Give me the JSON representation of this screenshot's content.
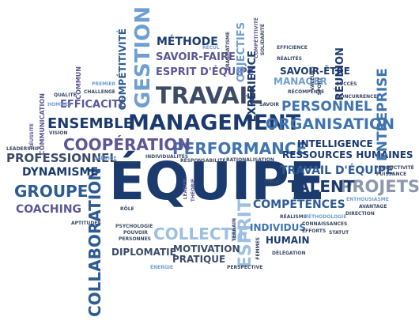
{
  "palette": {
    "navy": "#1b3a6e",
    "blue": "#2d5b93",
    "mid": "#3f74b0",
    "sky": "#6f9fd0",
    "light": "#9dbfe2",
    "slate": "#3c4b66",
    "purple": "#5c5896",
    "gray": "#8c98ad"
  },
  "words": {
    "equipe": "ÉQUIPE",
    "management": "MANAGEMENT",
    "travail": "TRAVAIL",
    "gestion": "GESTION",
    "collaboration": "COLLABORATION",
    "organisation": "ORGANISATION",
    "performance": "PERFORMANCE",
    "cooperation": "COOPÉRATION",
    "ensemble": "ENSEMBLE",
    "groupe": "GROUPE",
    "projets": "PROJETS",
    "talent": "TALENT",
    "collectif": "COLLECTIF",
    "esprit": "ESPRIT",
    "personnel": "PERSONNEL",
    "ressources_humaines": "RESSOURCES HUMAINES",
    "intelligence": "INTELLIGENCE",
    "travail_d_equipe": "TRAVAIL D'ÉQUIPE",
    "competences": "COMPÉTENCES",
    "individus": "INDIVIDUS",
    "humain": "HUMAIN",
    "dynamisme": "DYNAMISME",
    "professionnel": "PROFESSIONNEL",
    "coaching": "COACHING",
    "efficacite": "EFFICACITÉ",
    "diplomatie": "DIPLOMATIE",
    "motivation": "MOTIVATION",
    "pratique": "PRATIQUE",
    "methode": "MÉTHODE",
    "savoir_faire": "SAVOIR-FAIRE",
    "esprit_d_equipe": "ESPRIT D'ÉQUIPE",
    "savoir_etre": "SAVOIR-ÊTRE",
    "manager": "MANAGER",
    "experience": "EXPÉRIENCE",
    "objectifs": "OBJECTIFS",
    "reunion": "RÉUNION",
    "entreprise": "ENTREPRISE",
    "competitivite": "COMPÉTITIVITÉ",
    "competitivite_small": "COMPÉTITIVITÉ",
    "communication": "COMMUNICATION",
    "leadership": "LEADERSHIP",
    "reussite": "RÉUSSITE",
    "vision": "VISION",
    "hommes": "HOMMES",
    "qualite": "QUALITÉ",
    "challenge": "CHALLENGE",
    "premier": "PREMIER",
    "commun": "COMMUN",
    "service": "SERVICE",
    "individualites": "INDIVIDUALITÉS",
    "responsabilite": "RESPONSABILITÉ",
    "rationalisation": "RATIONALISATION",
    "leader": "LEADER",
    "theorie": "THÉORIE",
    "role": "RÔLE",
    "aptitudes": "APTITUDES",
    "psychologie": "PSYCHOLOGIE",
    "pouvoir": "POUVOIR",
    "personnes": "PERSONNES",
    "energie": "ÉNERGIE",
    "terrain": "TERRAIN",
    "femmes": "FEMMES",
    "perspective": "PERSPECTIVE",
    "delegation": "DÉLÉGATION",
    "efforts": "EFFORTS",
    "statut": "STATUT",
    "realisme": "RÉALISME",
    "methodologie": "MÉTHODOLOGIE",
    "connaissances": "CONNAISSANCES",
    "avantage": "AVANTAGE",
    "direction": "DIRECTION",
    "enthousiasme": "ENTHOUSIASME",
    "productivite": "PRODUCTIVITÉ",
    "puissance": "PUISSANCE",
    "cible": "CIBLE",
    "recul": "RECUL",
    "pragmatisme": "PRAGMATISME",
    "solidarite": "SOLIDARITÉ",
    "efficience": "EFFICIENCE",
    "realites": "RÉALITÉS",
    "recompense": "RÉCOMPENSE",
    "valeurs": "VALEURS",
    "sport": "SPORT",
    "succes": "SUCCÈS",
    "concurrence": "CONCURRENCE",
    "savoir": "SAVOIR"
  }
}
